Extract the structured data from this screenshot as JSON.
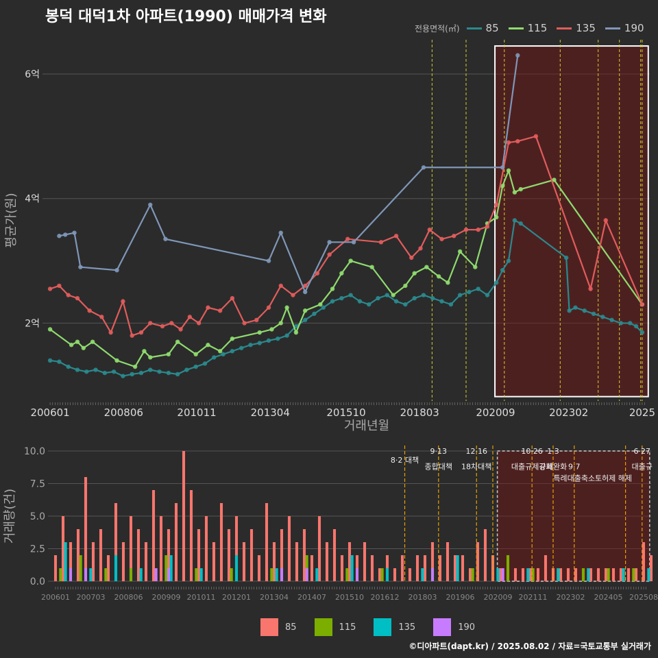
{
  "title": "봉덕 대덕1차 아파트(1990) 매매가격 변화",
  "legend_top": {
    "title": "전용면적(㎡)",
    "items": [
      {
        "label": "85",
        "color": "#2a8a8e"
      },
      {
        "label": "115",
        "color": "#8fdb6e"
      },
      {
        "label": "135",
        "color": "#e25c5c"
      },
      {
        "label": "190",
        "color": "#7f97b8"
      }
    ]
  },
  "legend_bottom": {
    "items": [
      {
        "label": "85",
        "color": "#f8766d"
      },
      {
        "label": "115",
        "color": "#7cae00"
      },
      {
        "label": "135",
        "color": "#00bfc4"
      },
      {
        "label": "190",
        "color": "#c77cff"
      }
    ]
  },
  "footer": "©디아파트(dapt.kr) / 2025.08.02 / 자료=국토교통부 실거래가",
  "chart_data": [
    {
      "type": "line",
      "ylabel": "평균가(원)",
      "xlabel": "거래년월",
      "ylim": [
        0.75,
        6.55
      ],
      "xlim": [
        2005.75,
        2025.75
      ],
      "yticks": [
        {
          "v": 2,
          "label": "2억"
        },
        {
          "v": 4,
          "label": "4억"
        },
        {
          "v": 6,
          "label": "6억"
        }
      ],
      "xticks": [
        {
          "v": 2006.0,
          "label": "200601"
        },
        {
          "v": 2008.42,
          "label": "200806"
        },
        {
          "v": 2010.83,
          "label": "201011"
        },
        {
          "v": 2013.25,
          "label": "201304"
        },
        {
          "v": 2015.75,
          "label": "201510"
        },
        {
          "v": 2018.17,
          "label": "201803"
        },
        {
          "v": 2020.67,
          "label": "202009"
        },
        {
          "v": 2023.08,
          "label": "202302"
        },
        {
          "v": 2025.5,
          "label": "2025"
        }
      ],
      "vlines": [
        2018.58,
        2019.7,
        2020.96,
        2022.8,
        2024.05,
        2024.75,
        2025.45,
        2025.5
      ],
      "highlight": {
        "x0": 2020.65,
        "x1": 2025.7,
        "y0": 0.82,
        "y1": 6.45
      },
      "series": [
        {
          "name": "85",
          "color": "#2a8a8e",
          "x": [
            2006.0,
            2006.3,
            2006.6,
            2006.9,
            2007.2,
            2007.5,
            2007.8,
            2008.1,
            2008.4,
            2008.7,
            2009.0,
            2009.3,
            2009.6,
            2009.9,
            2010.2,
            2010.5,
            2010.8,
            2011.1,
            2011.4,
            2011.7,
            2012.0,
            2012.3,
            2012.6,
            2012.9,
            2013.2,
            2013.5,
            2013.8,
            2014.1,
            2014.4,
            2014.7,
            2015.0,
            2015.3,
            2015.6,
            2015.9,
            2016.2,
            2016.5,
            2016.8,
            2017.1,
            2017.4,
            2017.7,
            2018.0,
            2018.3,
            2018.6,
            2018.9,
            2019.2,
            2019.5,
            2019.8,
            2020.1,
            2020.4,
            2020.7,
            2020.9,
            2021.1,
            2021.3,
            2021.5,
            2023.0,
            2023.1,
            2023.3,
            2023.6,
            2023.9,
            2024.2,
            2024.5,
            2024.8,
            2025.1,
            2025.3,
            2025.5
          ],
          "y": [
            1.4,
            1.38,
            1.3,
            1.25,
            1.22,
            1.25,
            1.2,
            1.22,
            1.15,
            1.18,
            1.2,
            1.25,
            1.22,
            1.2,
            1.18,
            1.25,
            1.3,
            1.35,
            1.45,
            1.5,
            1.55,
            1.6,
            1.65,
            1.68,
            1.72,
            1.75,
            1.8,
            1.95,
            2.05,
            2.15,
            2.25,
            2.35,
            2.4,
            2.45,
            2.35,
            2.3,
            2.4,
            2.45,
            2.35,
            2.3,
            2.4,
            2.45,
            2.4,
            2.35,
            2.3,
            2.45,
            2.5,
            2.55,
            2.45,
            2.65,
            2.85,
            3.0,
            3.65,
            3.6,
            3.05,
            2.2,
            2.25,
            2.2,
            2.15,
            2.1,
            2.05,
            2.0,
            2.0,
            1.95,
            1.85
          ]
        },
        {
          "name": "115",
          "color": "#8fdb6e",
          "x": [
            2006.0,
            2006.7,
            2006.9,
            2007.1,
            2007.4,
            2008.2,
            2008.8,
            2009.1,
            2009.3,
            2009.9,
            2010.2,
            2010.8,
            2011.2,
            2011.6,
            2012.0,
            2012.9,
            2013.3,
            2013.6,
            2013.8,
            2014.1,
            2014.4,
            2014.9,
            2015.3,
            2015.6,
            2015.9,
            2016.6,
            2017.3,
            2017.7,
            2018.0,
            2018.4,
            2018.8,
            2019.1,
            2019.5,
            2020.0,
            2020.4,
            2020.7,
            2020.9,
            2021.1,
            2021.3,
            2021.5,
            2022.6,
            2025.5
          ],
          "y": [
            1.9,
            1.65,
            1.7,
            1.6,
            1.7,
            1.4,
            1.3,
            1.55,
            1.45,
            1.5,
            1.7,
            1.5,
            1.65,
            1.55,
            1.75,
            1.85,
            1.9,
            2.0,
            2.25,
            1.85,
            2.2,
            2.3,
            2.55,
            2.8,
            3.0,
            2.9,
            2.45,
            2.6,
            2.8,
            2.9,
            2.75,
            2.65,
            3.15,
            2.9,
            3.6,
            3.7,
            4.2,
            4.45,
            4.1,
            4.15,
            4.3,
            2.3
          ]
        },
        {
          "name": "135",
          "color": "#e25c5c",
          "x": [
            2006.0,
            2006.3,
            2006.6,
            2006.9,
            2007.3,
            2007.7,
            2008.0,
            2008.4,
            2008.7,
            2009.0,
            2009.3,
            2009.7,
            2010.0,
            2010.3,
            2010.6,
            2010.9,
            2011.2,
            2011.6,
            2012.0,
            2012.4,
            2012.8,
            2013.2,
            2013.6,
            2014.0,
            2014.4,
            2014.8,
            2015.2,
            2015.8,
            2016.9,
            2017.4,
            2017.9,
            2018.2,
            2018.5,
            2018.9,
            2019.3,
            2019.7,
            2020.1,
            2020.4,
            2020.7,
            2021.1,
            2021.4,
            2022.0,
            2023.8,
            2024.3,
            2025.5
          ],
          "y": [
            2.55,
            2.6,
            2.45,
            2.4,
            2.2,
            2.1,
            1.85,
            2.35,
            1.8,
            1.85,
            2.0,
            1.95,
            2.0,
            1.9,
            2.1,
            2.0,
            2.25,
            2.2,
            2.4,
            2.0,
            2.05,
            2.25,
            2.6,
            2.45,
            2.6,
            2.8,
            3.1,
            3.35,
            3.3,
            3.4,
            3.05,
            3.2,
            3.5,
            3.35,
            3.4,
            3.5,
            3.5,
            3.55,
            3.9,
            4.9,
            4.92,
            5.0,
            2.55,
            3.65,
            2.3
          ]
        },
        {
          "name": "190",
          "color": "#7f97b8",
          "x": [
            2006.3,
            2006.5,
            2006.8,
            2007.0,
            2008.2,
            2009.3,
            2009.8,
            2013.2,
            2013.6,
            2014.4,
            2015.2,
            2016.0,
            2018.3,
            2020.9,
            2021.4
          ],
          "y": [
            3.4,
            3.42,
            3.45,
            2.9,
            2.85,
            3.9,
            3.35,
            3.0,
            3.45,
            2.5,
            3.3,
            3.3,
            4.5,
            4.5,
            6.3
          ]
        }
      ]
    },
    {
      "type": "bar",
      "ylabel": "거래량(건)",
      "ylim": [
        0,
        10
      ],
      "yticks": [
        {
          "v": 0,
          "label": "0.0"
        },
        {
          "v": 2.5,
          "label": "2.5"
        },
        {
          "v": 5,
          "label": "5.0"
        },
        {
          "v": 7.5,
          "label": "7.5"
        },
        {
          "v": 10,
          "label": "10.0"
        }
      ],
      "xlim": [
        2005.75,
        2025.75
      ],
      "xticks": [
        {
          "v": 2006.0,
          "label": "200601"
        },
        {
          "v": 2007.17,
          "label": "200703"
        },
        {
          "v": 2008.42,
          "label": "200806"
        },
        {
          "v": 2009.67,
          "label": "200909"
        },
        {
          "v": 2010.83,
          "label": "201011"
        },
        {
          "v": 2012.0,
          "label": "201201"
        },
        {
          "v": 2013.25,
          "label": "201304"
        },
        {
          "v": 2014.5,
          "label": "201407"
        },
        {
          "v": 2015.75,
          "label": "201510"
        },
        {
          "v": 2016.92,
          "label": "201612"
        },
        {
          "v": 2018.17,
          "label": "201803"
        },
        {
          "v": 2019.42,
          "label": "201906"
        },
        {
          "v": 2020.67,
          "label": "202009"
        },
        {
          "v": 2021.83,
          "label": "202111"
        },
        {
          "v": 2023.08,
          "label": "202302"
        },
        {
          "v": 2024.33,
          "label": "202405"
        },
        {
          "v": 2025.5,
          "label": "202508"
        }
      ],
      "vlines": [
        2017.58,
        2018.7,
        2019.96,
        2020.5,
        2021.8,
        2022.5,
        2023.2,
        2024.9,
        2025.45
      ],
      "highlight": {
        "x0": 2020.65,
        "x1": 2025.7,
        "y0": 0,
        "y1": 10
      },
      "annotations": [
        {
          "x": 2017.58,
          "y": 9.1,
          "label": "8·2 대책"
        },
        {
          "x": 2018.7,
          "y": 9.8,
          "label": "9·13"
        },
        {
          "x": 2018.7,
          "y": 8.6,
          "label": "종합대책"
        },
        {
          "x": 2019.96,
          "y": 9.8,
          "label": "12·16"
        },
        {
          "x": 2019.96,
          "y": 8.6,
          "label": "18차대책"
        },
        {
          "x": 2021.8,
          "y": 9.8,
          "label": "10·26"
        },
        {
          "x": 2021.8,
          "y": 8.6,
          "label": "대출규제강화"
        },
        {
          "x": 2022.5,
          "y": 9.8,
          "label": "1·3"
        },
        {
          "x": 2022.5,
          "y": 8.6,
          "label": "규제완화"
        },
        {
          "x": 2023.2,
          "y": 8.6,
          "label": "9·7"
        },
        {
          "x": 2023.2,
          "y": 7.7,
          "label": "특례대출축소"
        },
        {
          "x": 2024.5,
          "y": 7.7,
          "label": "토허제 해제"
        },
        {
          "x": 2025.45,
          "y": 9.8,
          "label": "6·27"
        },
        {
          "x": 2025.45,
          "y": 8.6,
          "label": "대출규"
        }
      ],
      "series": [
        {
          "name": "85",
          "color": "#f8766d",
          "months_from_200601": [
            0,
            3,
            6,
            9,
            12,
            15,
            18,
            21,
            24,
            27,
            30,
            33,
            36,
            39,
            42,
            45,
            48,
            51,
            54,
            57,
            60,
            63,
            66,
            69,
            72,
            75,
            78,
            81,
            84,
            87,
            90,
            93,
            96,
            99,
            102,
            105,
            108,
            111,
            114,
            117,
            120,
            123,
            126,
            129,
            132,
            135,
            138,
            141,
            144,
            147,
            150,
            153,
            156,
            159,
            162,
            165,
            168,
            171,
            174,
            177,
            180,
            183,
            186,
            189,
            192,
            195,
            198,
            201,
            204,
            207,
            210,
            213,
            216,
            219,
            222,
            225,
            228,
            231,
            234,
            237
          ],
          "values": [
            2,
            5,
            3,
            4,
            8,
            3,
            4,
            2,
            6,
            3,
            5,
            4,
            3,
            7,
            5,
            4,
            6,
            10,
            7,
            4,
            5,
            3,
            6,
            4,
            5,
            3,
            4,
            2,
            6,
            3,
            4,
            5,
            3,
            4,
            2,
            5,
            3,
            4,
            2,
            3,
            2,
            3,
            2,
            1,
            2,
            1,
            2,
            1,
            2,
            2,
            3,
            2,
            3,
            2,
            2,
            1,
            3,
            4,
            2,
            1,
            1,
            1,
            1,
            1,
            1,
            2,
            1,
            1,
            1,
            1,
            1,
            1,
            1,
            1,
            1,
            1,
            1,
            1,
            3,
            2
          ]
        },
        {
          "name": "115",
          "color": "#7cae00",
          "months_from_200601": [
            2,
            10,
            20,
            30,
            44,
            56,
            70,
            86,
            100,
            116,
            130,
            150,
            166,
            180,
            190,
            200,
            210,
            220,
            230
          ],
          "values": [
            1,
            2,
            1,
            1,
            2,
            1,
            1,
            1,
            2,
            1,
            1,
            1,
            1,
            2,
            1,
            1,
            1,
            1,
            1
          ]
        },
        {
          "name": "135",
          "color": "#00bfc4",
          "months_from_200601": [
            4,
            14,
            24,
            34,
            46,
            58,
            72,
            88,
            104,
            118,
            132,
            146,
            160,
            176,
            188,
            200,
            212,
            226,
            236
          ],
          "values": [
            3,
            1,
            2,
            1,
            2,
            1,
            2,
            1,
            1,
            2,
            1,
            1,
            2,
            1,
            1,
            1,
            1,
            1,
            1
          ]
        },
        {
          "name": "190",
          "color": "#c77cff",
          "months_from_200601": [
            6,
            12,
            40,
            45,
            90,
            100,
            120,
            150,
            178
          ],
          "values": [
            1,
            1,
            1,
            1,
            1,
            1,
            1,
            1,
            1
          ]
        }
      ]
    }
  ]
}
